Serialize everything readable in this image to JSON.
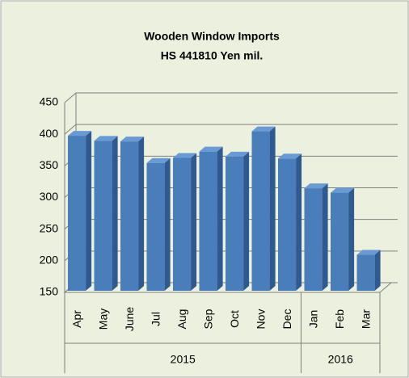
{
  "chart_data": {
    "type": "bar3d",
    "title": "Wooden Window Imports",
    "subtitle": "HS 441810 Yen mil.",
    "categories": [
      "Apr",
      "May",
      "June",
      "Jul",
      "Aug",
      "Sep",
      "Oct",
      "Nov",
      "Dec",
      "Jan",
      "Feb",
      "Mar"
    ],
    "values": [
      395,
      387,
      386,
      352,
      360,
      370,
      362,
      402,
      359,
      312,
      305,
      207
    ],
    "groups": [
      {
        "label": "2015",
        "size": 9
      },
      {
        "label": "2016",
        "size": 3
      }
    ],
    "color": "#4a7ebb",
    "ylim": [
      150,
      450
    ],
    "yticks": [
      150,
      200,
      250,
      300,
      350,
      400,
      450
    ],
    "grid": true
  }
}
